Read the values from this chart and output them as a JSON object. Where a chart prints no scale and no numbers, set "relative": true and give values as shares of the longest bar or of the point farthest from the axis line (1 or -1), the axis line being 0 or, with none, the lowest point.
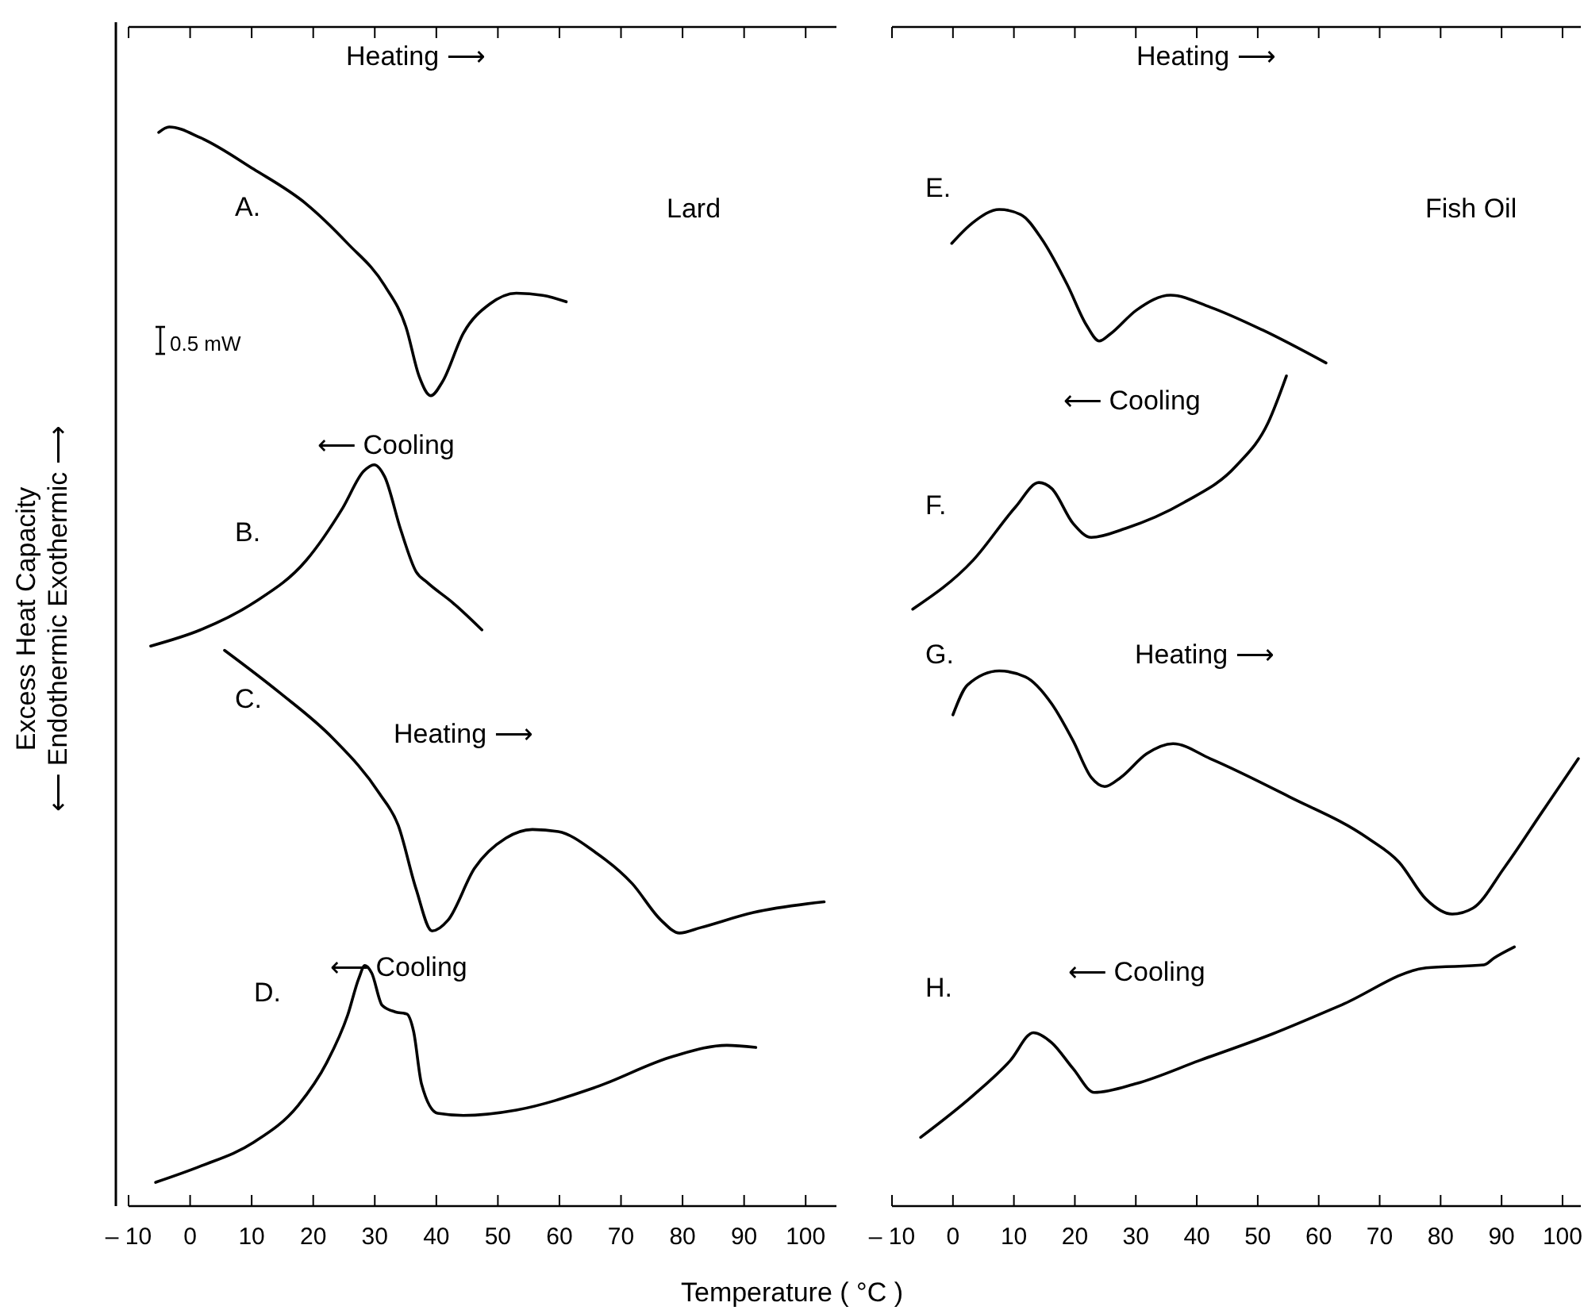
{
  "chart_data": [
    {
      "type": "line",
      "relative": true,
      "ylabel": "Excess Heat Capacity\n⟵ Endothermic Exothermic ⟶",
      "xlabel": "Temperature ( °C )",
      "xlim": [
        -10,
        105
      ],
      "xticks": [
        {
          "value": -10,
          "label": "– 10"
        },
        0,
        10,
        20,
        30,
        40,
        50,
        60,
        70,
        80,
        90,
        100
      ],
      "tick_labels": "x",
      "legend": false,
      "grid": false,
      "marker": "none",
      "line_style": "solid",
      "annotations": [
        "Heating ⟶",
        "Lard",
        "0.5 mW",
        "⟵ Cooling",
        "Heating ⟶",
        "⟵ Cooling"
      ],
      "series": [
        {
          "name": "A.",
          "color": "#000000",
          "x": [
            -5.1,
            -3.4,
            1.7,
            10.3,
            18.8,
            25.6,
            31.6,
            35.1,
            37.2,
            39.1,
            41.0,
            44.4,
            48.7,
            53.0,
            57.3,
            61.1
          ],
          "values": [
            0.995,
            1,
            0.99,
            0.961,
            0.929,
            0.892,
            0.853,
            0.814,
            0.769,
            0.751,
            0.764,
            0.809,
            0.836,
            0.846,
            0.844,
            0.838
          ]
        },
        {
          "name": "B.",
          "color": "#000000",
          "x": [
            -6.4,
            1.7,
            10.3,
            18.8,
            24.8,
            28.2,
            29.9,
            31.6,
            34.2,
            36.7,
            38.5,
            42.7,
            47.4
          ],
          "values": [
            0.519,
            0.534,
            0.559,
            0.598,
            0.647,
            0.681,
            0.687,
            0.676,
            0.627,
            0.588,
            0.578,
            0.559,
            0.534
          ]
        },
        {
          "name": "C.",
          "color": "#000000",
          "x": [
            5.6,
            14.5,
            23.1,
            30.8,
            33.8,
            36.7,
            39.3,
            41.9,
            46.2,
            51.3,
            55.6,
            59.8,
            65.8,
            71.8,
            76.5,
            79.5,
            82.9,
            91.5,
            103.0
          ],
          "values": [
            0.515,
            0.476,
            0.434,
            0.382,
            0.353,
            0.294,
            0.255,
            0.265,
            0.313,
            0.341,
            0.349,
            0.347,
            0.328,
            0.299,
            0.265,
            0.253,
            0.258,
            0.272,
            0.282
          ]
        },
        {
          "name": "D.",
          "color": "#000000",
          "x": [
            -5.6,
            1.7,
            10.3,
            17.5,
            22.2,
            25.6,
            27.4,
            28.4,
            29.5,
            31.2,
            33.3,
            35.2,
            36.3,
            37.6,
            40.2,
            44.4,
            53.0,
            65.8,
            78.6,
            87.2,
            91.9
          ],
          "values": [
            0.022,
            0.037,
            0.059,
            0.093,
            0.133,
            0.177,
            0.211,
            0.223,
            0.216,
            0.186,
            0.18,
            0.178,
            0.162,
            0.113,
            0.086,
            0.084,
            0.089,
            0.11,
            0.139,
            0.149,
            0.147
          ]
        }
      ]
    },
    {
      "type": "line",
      "relative": true,
      "xlim": [
        -10,
        103
      ],
      "xticks": [
        {
          "value": -10,
          "label": "– 10"
        },
        0,
        10,
        20,
        30,
        40,
        50,
        60,
        70,
        80,
        90,
        100
      ],
      "tick_labels": "x",
      "legend": false,
      "grid": false,
      "marker": "none",
      "line_style": "solid",
      "annotations": [
        "Heating ⟶",
        "Fish Oil",
        "⟵ Cooling",
        "Heating ⟶",
        "⟵ Cooling"
      ],
      "series": [
        {
          "name": "E.",
          "color": "#000000",
          "x": [
            -0.2,
            3.3,
            7.6,
            11.1,
            14.5,
            18.8,
            21.9,
            24.0,
            25.8,
            30.1,
            35.7,
            42.2,
            50.8,
            61.2
          ],
          "values": [
            0.966,
            0.987,
            1,
            0.995,
            0.971,
            0.924,
            0.884,
            0.868,
            0.875,
            0.899,
            0.914,
            0.902,
            0.879,
            0.846
          ]
        },
        {
          "name": "F.",
          "color": "#000000",
          "x": [
            -6.6,
            3.3,
            10.2,
            14.1,
            16.2,
            19.7,
            22.7,
            28.3,
            37.9,
            46.5,
            51.7,
            54.7
          ],
          "values": [
            0.599,
            0.648,
            0.701,
            0.726,
            0.72,
            0.685,
            0.671,
            0.68,
            0.706,
            0.743,
            0.786,
            0.833
          ]
        },
        {
          "name": "G.",
          "color": "#000000",
          "x": [
            0.0,
            2.4,
            7.6,
            11.9,
            16.2,
            19.7,
            22.7,
            24.9,
            27.5,
            31.8,
            36.1,
            42.2,
            55.1,
            68.1,
            73.2,
            77.6,
            81.9,
            85.3,
            90.5,
            96.6,
            102.6
          ],
          "values": [
            0.493,
            0.523,
            0.537,
            0.531,
            0.504,
            0.467,
            0.43,
            0.421,
            0.43,
            0.454,
            0.464,
            0.449,
            0.411,
            0.369,
            0.345,
            0.308,
            0.293,
            0.299,
            0.34,
            0.395,
            0.449
          ]
        },
        {
          "name": "H.",
          "color": "#000000",
          "x": [
            -5.3,
            3.3,
            9.4,
            13.2,
            16.2,
            19.7,
            23.2,
            30.1,
            40.4,
            52.5,
            63.8,
            77.6,
            87.1,
            88.8,
            92.1
          ],
          "values": [
            0.069,
            0.111,
            0.146,
            0.174,
            0.164,
            0.138,
            0.114,
            0.123,
            0.146,
            0.173,
            0.202,
            0.239,
            0.242,
            0.249,
            0.26
          ]
        }
      ]
    }
  ]
}
